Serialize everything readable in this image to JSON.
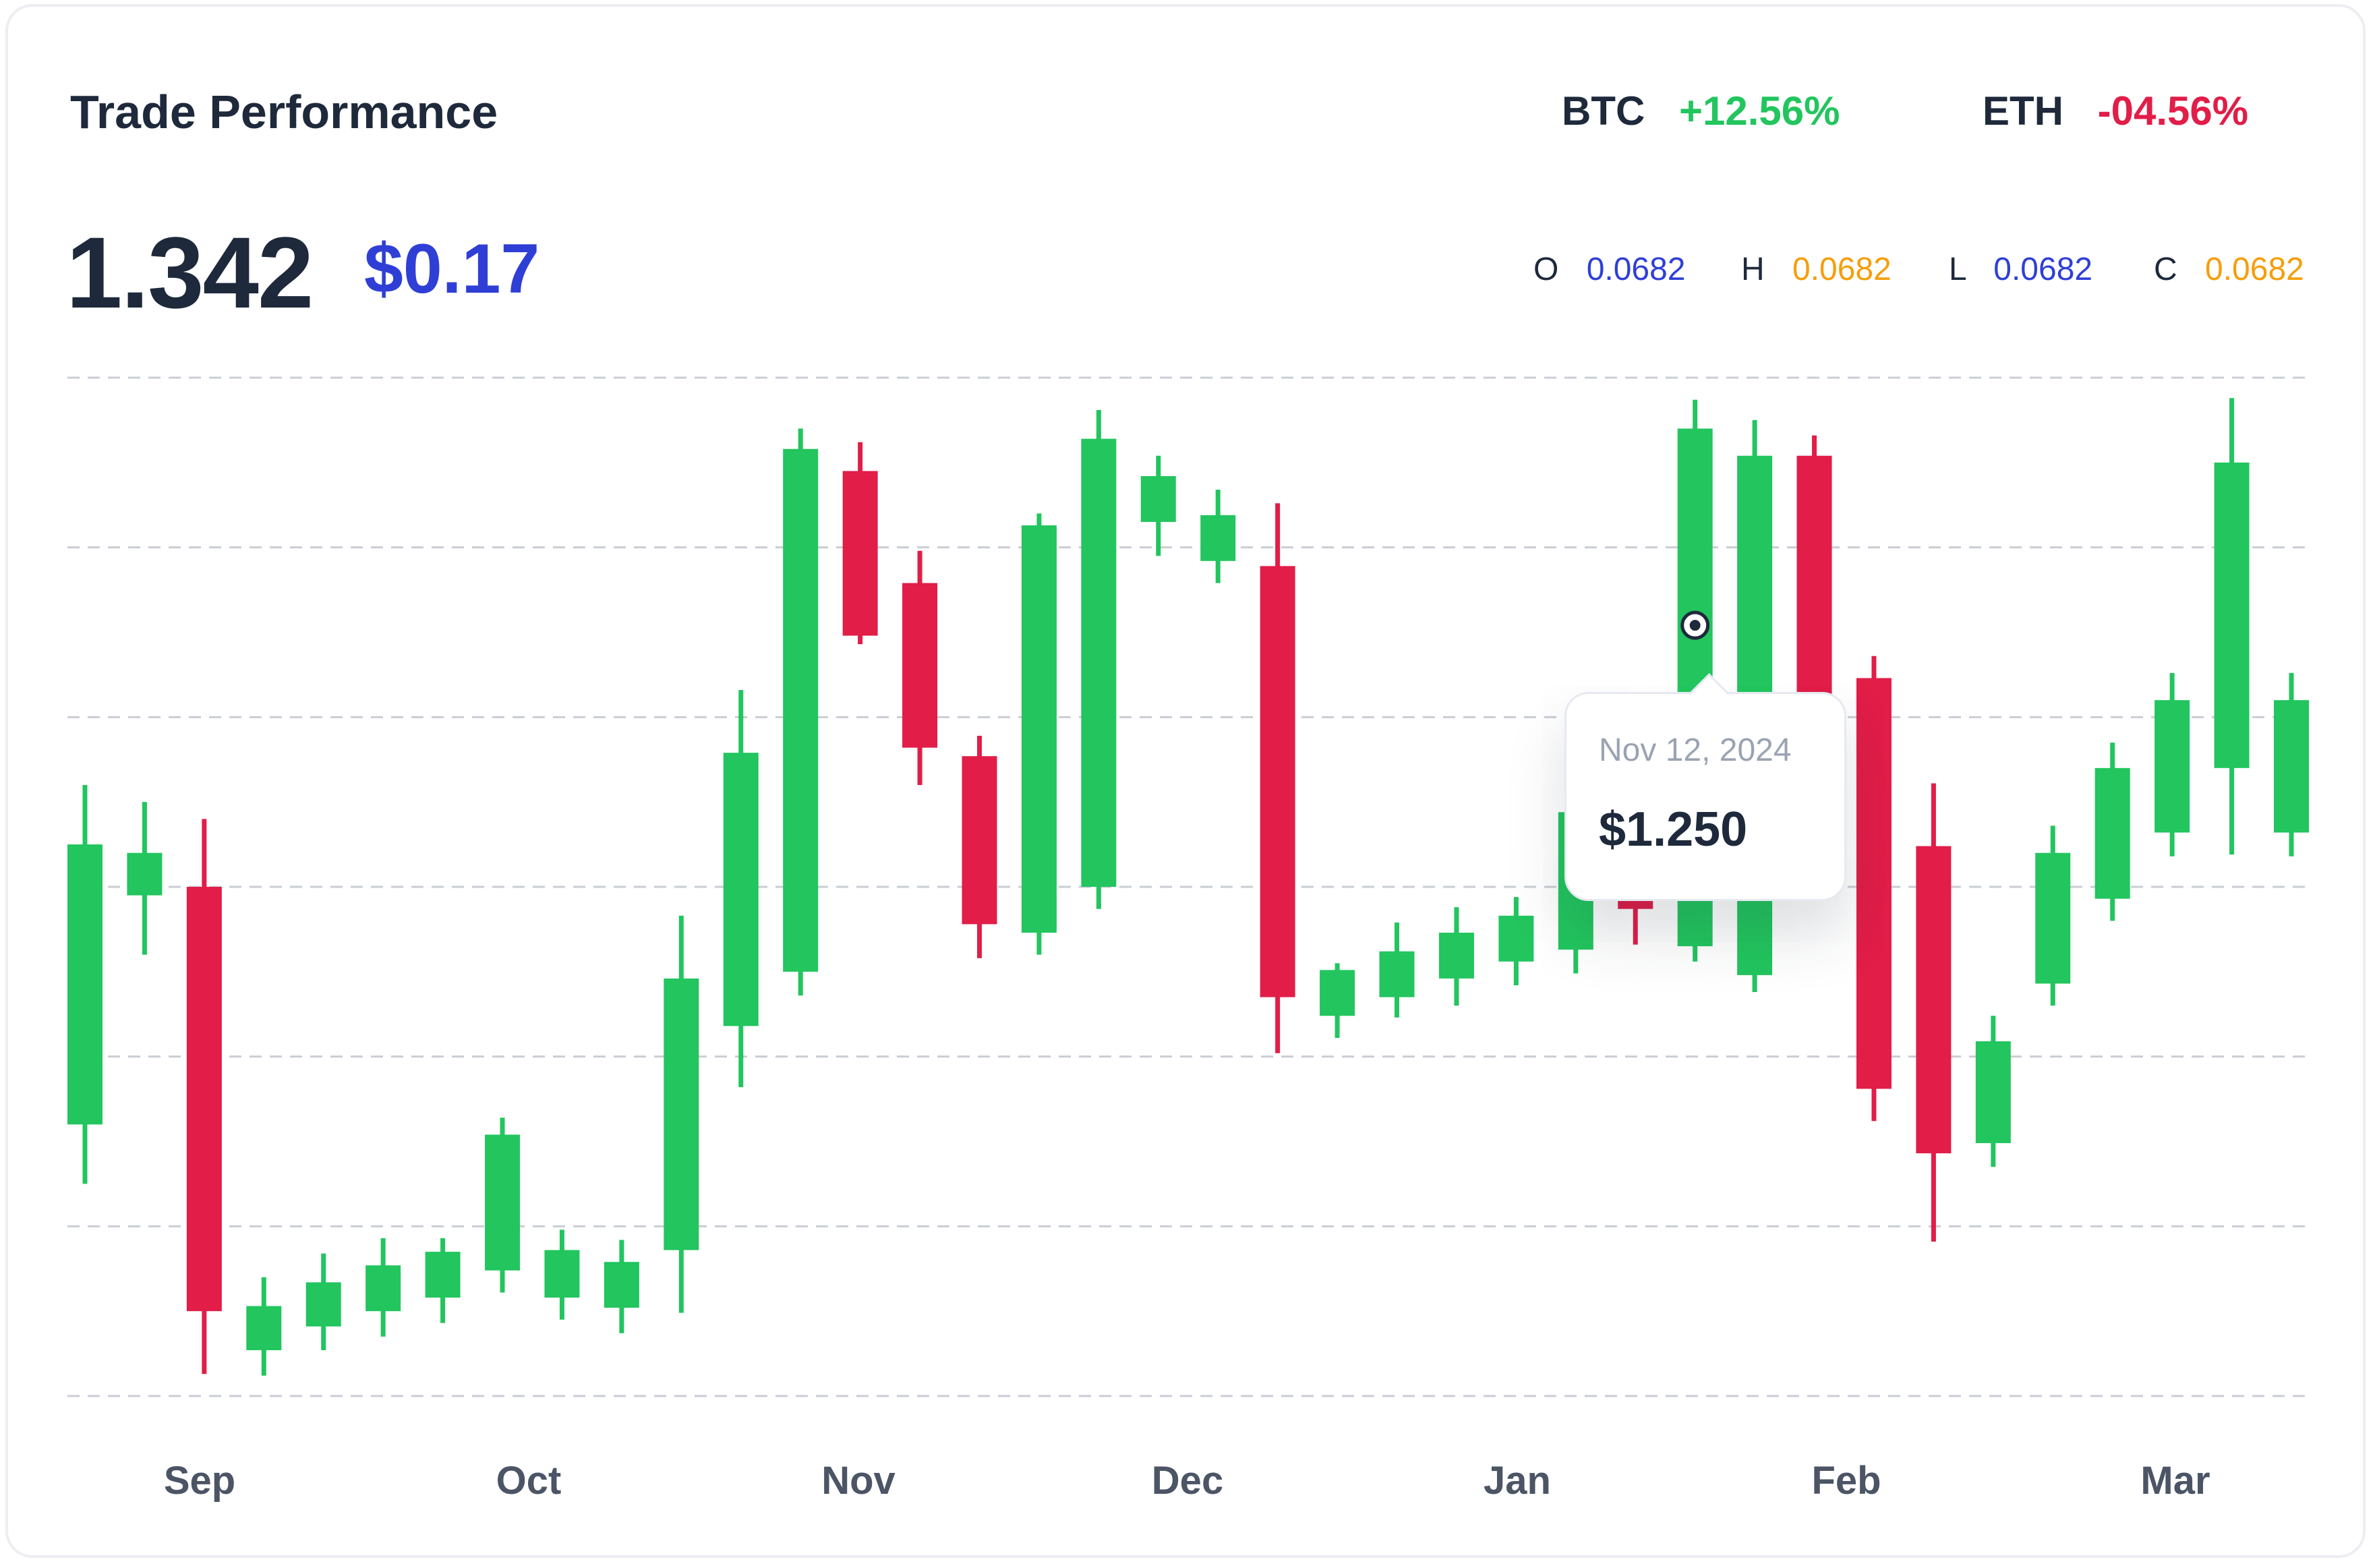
{
  "header": {
    "title": "Trade Performance",
    "big_value": "1.342",
    "sub_value": "$0.17"
  },
  "tickers": [
    {
      "name": "BTC",
      "change": "+12.56%",
      "color": "#22c55e"
    },
    {
      "name": "ETH",
      "change": "-04.56%",
      "color": "#e11d48"
    }
  ],
  "ohlc": [
    {
      "key": "O",
      "value": "0.0682",
      "color": "#2f3fd6"
    },
    {
      "key": "H",
      "value": "0.0682",
      "color": "#f59e0b"
    },
    {
      "key": "L",
      "value": "0.0682",
      "color": "#2f3fd6"
    },
    {
      "key": "C",
      "value": "0.0682",
      "color": "#f59e0b"
    }
  ],
  "tooltip": {
    "date": "Nov 12, 2024",
    "price": "$1.250"
  },
  "chart_data": {
    "type": "candlestick",
    "x_labels": [
      "Sep",
      "Oct",
      "Nov",
      "Dec",
      "Jan",
      "Feb",
      "Mar"
    ],
    "grid": "horizontal-dashed",
    "colors": {
      "up": "#22c55e",
      "down": "#e11d48",
      "grid": "#c9cdd4",
      "axis_label": "#4b5565"
    },
    "y_range": [
      0,
      6
    ],
    "candles": [
      {
        "o": 1.6,
        "h": 3.6,
        "l": 1.25,
        "c": 3.25
      },
      {
        "o": 2.95,
        "h": 3.5,
        "l": 2.6,
        "c": 3.2
      },
      {
        "o": 3.0,
        "h": 3.4,
        "l": 0.13,
        "c": 0.5
      },
      {
        "o": 0.27,
        "h": 0.7,
        "l": 0.12,
        "c": 0.53
      },
      {
        "o": 0.41,
        "h": 0.84,
        "l": 0.27,
        "c": 0.67
      },
      {
        "o": 0.5,
        "h": 0.93,
        "l": 0.35,
        "c": 0.77
      },
      {
        "o": 0.58,
        "h": 0.93,
        "l": 0.43,
        "c": 0.85
      },
      {
        "o": 0.74,
        "h": 1.64,
        "l": 0.61,
        "c": 1.54
      },
      {
        "o": 0.58,
        "h": 0.98,
        "l": 0.45,
        "c": 0.86
      },
      {
        "o": 0.52,
        "h": 0.92,
        "l": 0.37,
        "c": 0.79
      },
      {
        "o": 0.86,
        "h": 2.83,
        "l": 0.49,
        "c": 2.46
      },
      {
        "o": 2.18,
        "h": 4.16,
        "l": 1.82,
        "c": 3.79
      },
      {
        "o": 2.5,
        "h": 5.7,
        "l": 2.36,
        "c": 5.58
      },
      {
        "o": 5.45,
        "h": 5.62,
        "l": 4.43,
        "c": 4.48
      },
      {
        "o": 4.79,
        "h": 4.98,
        "l": 3.6,
        "c": 3.82
      },
      {
        "o": 3.77,
        "h": 3.89,
        "l": 2.58,
        "c": 2.78
      },
      {
        "o": 2.73,
        "h": 5.2,
        "l": 2.6,
        "c": 5.13
      },
      {
        "o": 3.0,
        "h": 5.81,
        "l": 2.87,
        "c": 5.64
      },
      {
        "o": 5.15,
        "h": 5.54,
        "l": 4.95,
        "c": 5.42
      },
      {
        "o": 4.92,
        "h": 5.34,
        "l": 4.79,
        "c": 5.19
      },
      {
        "o": 4.89,
        "h": 5.26,
        "l": 2.02,
        "c": 2.35
      },
      {
        "o": 2.24,
        "h": 2.55,
        "l": 2.11,
        "c": 2.51
      },
      {
        "o": 2.35,
        "h": 2.79,
        "l": 2.23,
        "c": 2.62
      },
      {
        "o": 2.46,
        "h": 2.88,
        "l": 2.3,
        "c": 2.73
      },
      {
        "o": 2.56,
        "h": 2.94,
        "l": 2.42,
        "c": 2.83
      },
      {
        "o": 2.63,
        "h": 3.62,
        "l": 2.49,
        "c": 3.44
      },
      {
        "o": 3.0,
        "h": 3.14,
        "l": 2.66,
        "c": 2.87
      },
      {
        "o": 2.65,
        "h": 5.87,
        "l": 2.56,
        "c": 5.7
      },
      {
        "o": 2.48,
        "h": 5.75,
        "l": 2.38,
        "c": 5.54
      },
      {
        "o": 5.54,
        "h": 5.66,
        "l": 3.37,
        "c": 3.52
      },
      {
        "o": 4.23,
        "h": 4.36,
        "l": 1.62,
        "c": 1.81
      },
      {
        "o": 3.24,
        "h": 3.61,
        "l": 0.91,
        "c": 1.43
      },
      {
        "o": 1.49,
        "h": 2.24,
        "l": 1.35,
        "c": 2.09
      },
      {
        "o": 2.43,
        "h": 3.36,
        "l": 2.3,
        "c": 3.2
      },
      {
        "o": 2.93,
        "h": 3.85,
        "l": 2.8,
        "c": 3.7
      },
      {
        "o": 3.32,
        "h": 4.26,
        "l": 3.18,
        "c": 4.1
      },
      {
        "o": 3.7,
        "h": 5.88,
        "l": 3.19,
        "c": 5.5
      },
      {
        "o": 3.32,
        "h": 4.26,
        "l": 3.18,
        "c": 4.1
      }
    ]
  }
}
